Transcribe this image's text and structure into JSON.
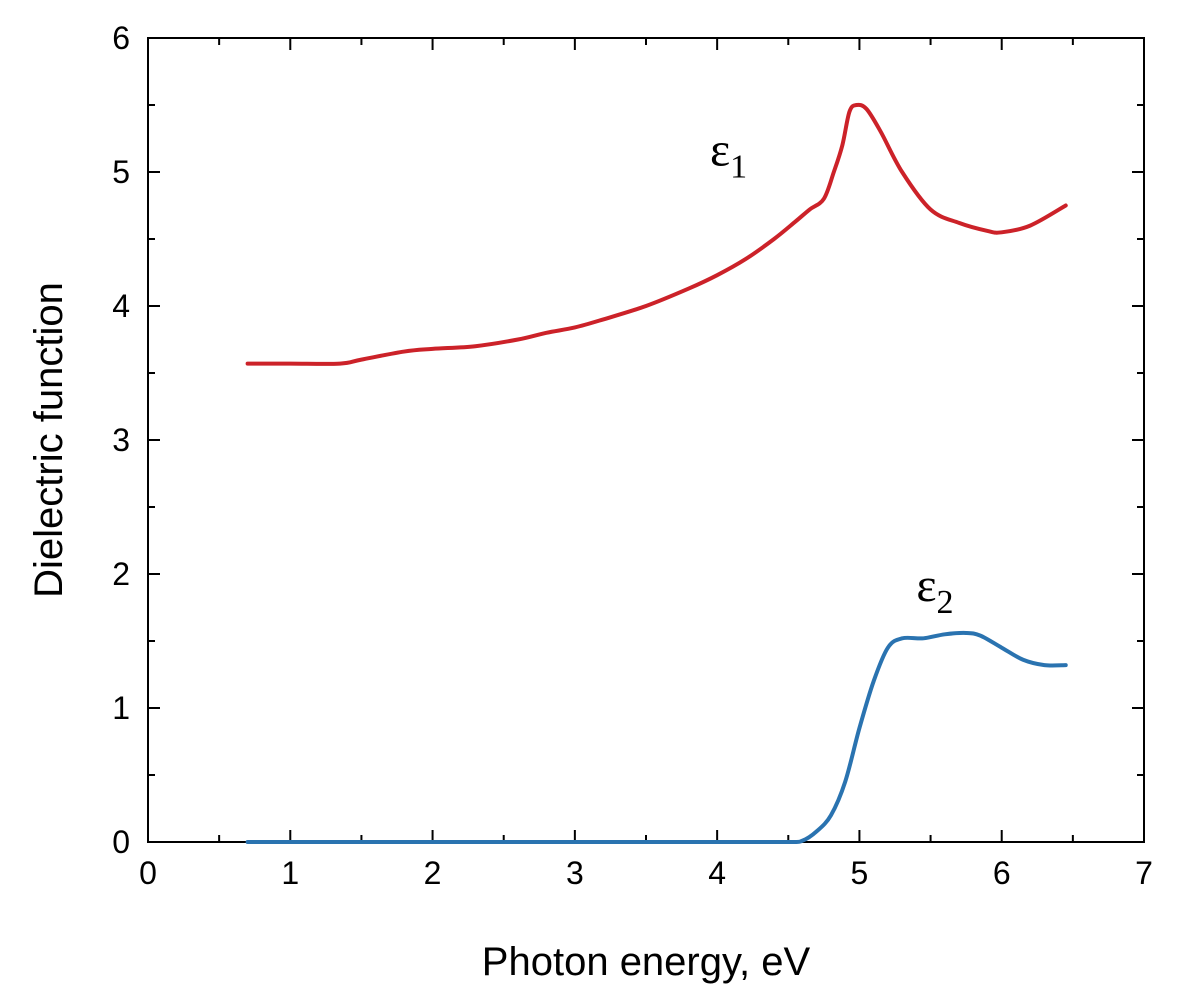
{
  "chart_data": {
    "type": "line",
    "title": "",
    "xlabel": "Photon energy, eV",
    "ylabel": "Dielectric function",
    "xlim": [
      0,
      7
    ],
    "ylim": [
      0,
      6
    ],
    "x_ticks": [
      0,
      1,
      2,
      3,
      4,
      5,
      6,
      7
    ],
    "y_ticks": [
      0,
      1,
      2,
      3,
      4,
      5,
      6
    ],
    "x_tick_labels": [
      "0",
      "1",
      "2",
      "3",
      "4",
      "5",
      "6",
      "7"
    ],
    "y_tick_labels": [
      "0",
      "1",
      "2",
      "3",
      "4",
      "5",
      "6"
    ],
    "grid": false,
    "legend": "none",
    "series": [
      {
        "name": "ε1",
        "label_symbol": "ε",
        "label_subscript": "1",
        "color": "#cc2229",
        "x": [
          0.7,
          1.0,
          1.35,
          1.5,
          1.8,
          2.0,
          2.3,
          2.6,
          2.8,
          3.0,
          3.2,
          3.5,
          3.8,
          4.0,
          4.2,
          4.4,
          4.55,
          4.65,
          4.75,
          4.82,
          4.88,
          4.93,
          4.98,
          5.05,
          5.15,
          5.3,
          5.5,
          5.7,
          5.9,
          6.0,
          6.2,
          6.45
        ],
        "y": [
          3.57,
          3.57,
          3.57,
          3.6,
          3.66,
          3.68,
          3.7,
          3.75,
          3.8,
          3.84,
          3.9,
          4.0,
          4.13,
          4.23,
          4.35,
          4.5,
          4.63,
          4.72,
          4.8,
          5.0,
          5.2,
          5.45,
          5.5,
          5.47,
          5.3,
          5.0,
          4.72,
          4.62,
          4.56,
          4.55,
          4.6,
          4.75
        ]
      },
      {
        "name": "ε2",
        "label_symbol": "ε",
        "label_subscript": "2",
        "color": "#2a73b0",
        "x": [
          0.7,
          1.0,
          2.0,
          3.0,
          4.0,
          4.5,
          4.6,
          4.7,
          4.8,
          4.9,
          5.0,
          5.1,
          5.2,
          5.3,
          5.45,
          5.6,
          5.75,
          5.85,
          6.0,
          6.15,
          6.3,
          6.45
        ],
        "y": [
          0,
          0,
          0,
          0,
          0,
          0,
          0.01,
          0.08,
          0.2,
          0.45,
          0.85,
          1.2,
          1.45,
          1.52,
          1.52,
          1.55,
          1.56,
          1.54,
          1.45,
          1.36,
          1.32,
          1.32
        ]
      }
    ]
  }
}
